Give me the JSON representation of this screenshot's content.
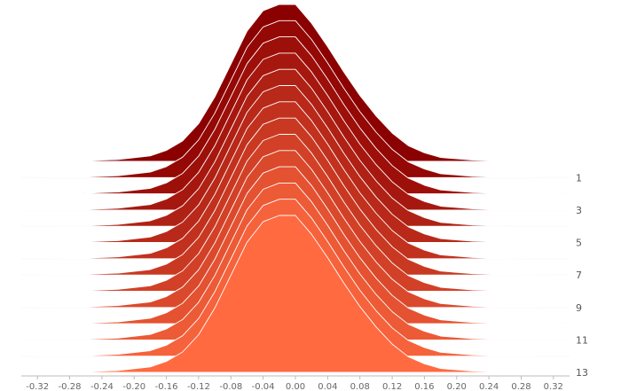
{
  "chart_data": {
    "type": "area",
    "variant": "ridgeline",
    "title": "",
    "xlabel": "",
    "ylabel": "",
    "xlim": [
      -0.34,
      0.34
    ],
    "x_ticks": [
      -0.32,
      -0.28,
      -0.24,
      -0.2,
      -0.16,
      -0.12,
      -0.08,
      -0.04,
      0.0,
      0.04,
      0.08,
      0.12,
      0.16,
      0.2,
      0.24,
      0.28,
      0.32
    ],
    "x_tick_labels": [
      "-0.32",
      "-0.28",
      "-0.24",
      "-0.20",
      "-0.16",
      "-0.12",
      "-0.08",
      "-0.04",
      "0.00",
      "0.04",
      "0.08",
      "0.12",
      "0.16",
      "0.20",
      "0.24",
      "0.28",
      "0.32"
    ],
    "row_labels": [
      "1",
      "3",
      "5",
      "7",
      "9",
      "11",
      "13"
    ],
    "series_count": 14,
    "x": [
      -0.34,
      -0.3,
      -0.26,
      -0.22,
      -0.18,
      -0.16,
      -0.14,
      -0.12,
      -0.1,
      -0.08,
      -0.06,
      -0.04,
      -0.02,
      0.0,
      0.02,
      0.04,
      0.06,
      0.08,
      0.1,
      0.12,
      0.14,
      0.16,
      0.18,
      0.22,
      0.26,
      0.3,
      0.34
    ],
    "density": [
      0,
      0.001,
      0.004,
      0.012,
      0.035,
      0.07,
      0.13,
      0.24,
      0.41,
      0.62,
      0.83,
      0.96,
      1.0,
      1.0,
      0.88,
      0.73,
      0.57,
      0.42,
      0.29,
      0.18,
      0.1,
      0.055,
      0.025,
      0.008,
      0.002,
      0.0005,
      0
    ],
    "colors": {
      "top": "#8b0000",
      "bottom": "#ff6a40",
      "outline": "#ffffff",
      "baseline": "#dddddd",
      "axis": "#bbbbbb"
    },
    "grid": false,
    "legend": "none"
  }
}
